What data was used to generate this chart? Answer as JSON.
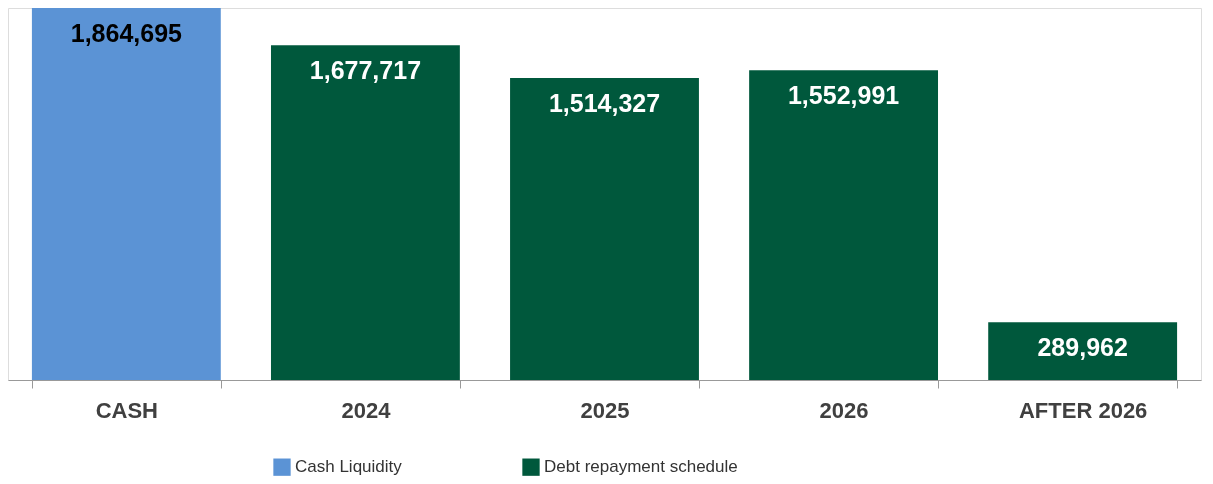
{
  "chart_data": {
    "type": "bar",
    "categories": [
      "CASH",
      "2024",
      "2025",
      "2026",
      "AFTER 2026"
    ],
    "series": [
      {
        "name": "Cash Liquidity",
        "color": "#5b93d5",
        "values": [
          1864695,
          null,
          null,
          null,
          null
        ],
        "value_labels": [
          "1,864,695",
          null,
          null,
          null,
          null
        ]
      },
      {
        "name": "Debt repayment schedule",
        "color": "#00583c",
        "values": [
          null,
          1677717,
          1514327,
          1552991,
          289962
        ],
        "value_labels": [
          null,
          "1,677,717",
          "1,514,327",
          "1,552,991",
          "289,962"
        ]
      }
    ],
    "legend": "bottom",
    "grid": false
  }
}
